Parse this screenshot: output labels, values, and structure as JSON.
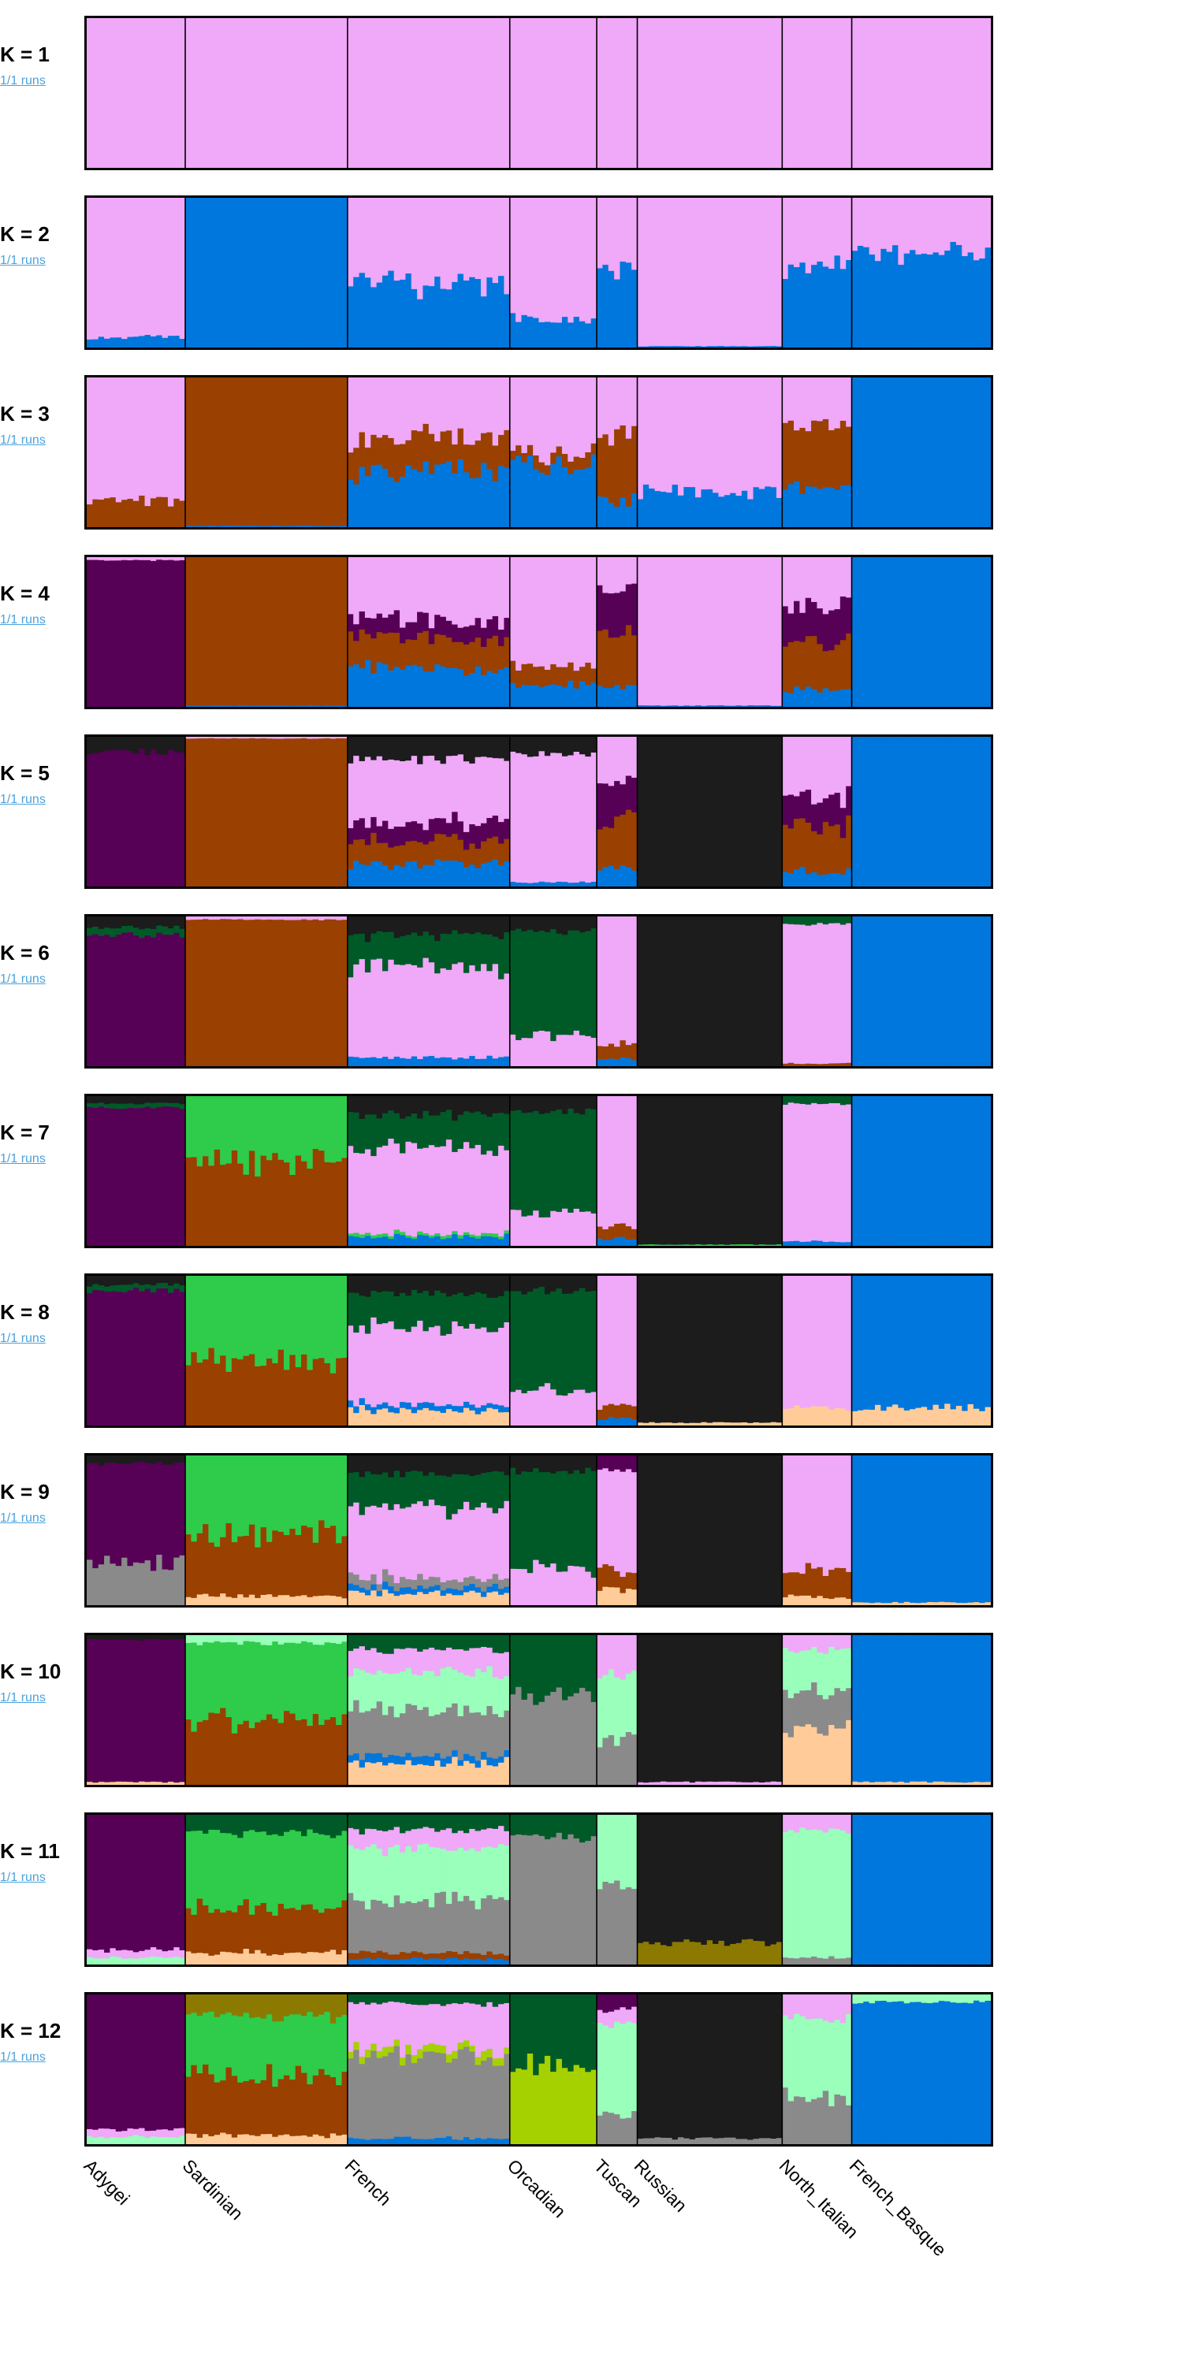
{
  "chart_data": {
    "type": "bar",
    "title": "",
    "xlabel": "",
    "ylabel": "",
    "ylim": [
      0,
      1
    ],
    "runs_text": "1/1 runs",
    "populations": [
      {
        "name": "Adygei",
        "n": 17
      },
      {
        "name": "Sardinian",
        "n": 28
      },
      {
        "name": "French",
        "n": 28
      },
      {
        "name": "Orcadian",
        "n": 15
      },
      {
        "name": "Tuscan",
        "n": 7
      },
      {
        "name": "Russian",
        "n": 25
      },
      {
        "name": "North_Italian",
        "n": 12
      },
      {
        "name": "French_Basque",
        "n": 24
      }
    ],
    "colors": {
      "pink": "#f0a8f8",
      "blue": "#0077dd",
      "brown": "#9a4000",
      "purple": "#560056",
      "black": "#1c1c1c",
      "darkgreen": "#005a28",
      "green": "#2ecc4a",
      "peach": "#ffcc99",
      "gray": "#8a8a8a",
      "mint": "#99ffbb",
      "olive": "#8c7a00",
      "lime": "#a6d100"
    },
    "panels": [
      {
        "label": "K = 1",
        "k": 1,
        "clusters": [
          "pink"
        ],
        "pops": [
          {
            "pink": 1
          },
          {
            "pink": 1
          },
          {
            "pink": 1
          },
          {
            "pink": 1
          },
          {
            "pink": 1
          },
          {
            "pink": 1
          },
          {
            "pink": 1
          },
          {
            "pink": 1
          }
        ]
      },
      {
        "label": "K = 2",
        "k": 2,
        "clusters": [
          "blue",
          "pink"
        ],
        "pops": [
          {
            "blue": 0.07,
            "pink": 0.93
          },
          {
            "blue": 1
          },
          {
            "blue": 0.42,
            "pink": 0.58
          },
          {
            "blue": 0.19,
            "pink": 0.81
          },
          {
            "blue": 0.52,
            "pink": 0.48
          },
          {
            "blue": 0.01,
            "pink": 0.99
          },
          {
            "blue": 0.54,
            "pink": 0.46
          },
          {
            "blue": 0.63,
            "pink": 0.37
          }
        ]
      },
      {
        "label": "K = 3",
        "k": 3,
        "clusters": [
          "blue",
          "brown",
          "pink"
        ],
        "pops": [
          {
            "brown": 0.18,
            "pink": 0.82
          },
          {
            "brown": 0.99,
            "blue": 0.01
          },
          {
            "blue": 0.38,
            "brown": 0.22,
            "pink": 0.4
          },
          {
            "blue": 0.42,
            "brown": 0.08,
            "pink": 0.5
          },
          {
            "blue": 0.18,
            "brown": 0.45,
            "pink": 0.37
          },
          {
            "blue": 0.24,
            "pink": 0.76
          },
          {
            "blue": 0.26,
            "brown": 0.43,
            "pink": 0.31
          },
          {
            "blue": 1
          }
        ]
      },
      {
        "label": "K = 4",
        "k": 4,
        "clusters": [
          "blue",
          "brown",
          "purple",
          "pink"
        ],
        "pops": [
          {
            "purple": 0.98,
            "pink": 0.02
          },
          {
            "brown": 0.99,
            "blue": 0.01
          },
          {
            "blue": 0.25,
            "brown": 0.2,
            "purple": 0.12,
            "pink": 0.43
          },
          {
            "blue": 0.15,
            "brown": 0.12,
            "pink": 0.73
          },
          {
            "blue": 0.15,
            "brown": 0.35,
            "purple": 0.28,
            "pink": 0.22
          },
          {
            "blue": 0.01,
            "pink": 0.99
          },
          {
            "blue": 0.12,
            "brown": 0.3,
            "purple": 0.25,
            "pink": 0.33
          },
          {
            "blue": 1
          }
        ]
      },
      {
        "label": "K = 5",
        "k": 5,
        "clusters": [
          "blue",
          "brown",
          "purple",
          "pink",
          "black"
        ],
        "pops": [
          {
            "purple": 0.9,
            "black": 0.1
          },
          {
            "brown": 0.99,
            "pink": 0.01
          },
          {
            "blue": 0.15,
            "brown": 0.15,
            "purple": 0.12,
            "pink": 0.43,
            "black": 0.15
          },
          {
            "blue": 0.03,
            "pink": 0.85,
            "black": 0.12
          },
          {
            "blue": 0.12,
            "brown": 0.33,
            "purple": 0.25,
            "pink": 0.3
          },
          {
            "black": 1
          },
          {
            "blue": 0.1,
            "brown": 0.3,
            "purple": 0.2,
            "pink": 0.4
          },
          {
            "blue": 1
          }
        ]
      },
      {
        "label": "K = 6",
        "k": 6,
        "clusters": [
          "blue",
          "brown",
          "pink",
          "purple",
          "darkgreen",
          "black"
        ],
        "pops": [
          {
            "purple": 0.88,
            "black": 0.07,
            "darkgreen": 0.05
          },
          {
            "brown": 0.98,
            "pink": 0.02
          },
          {
            "blue": 0.06,
            "pink": 0.6,
            "darkgreen": 0.22,
            "black": 0.12
          },
          {
            "pink": 0.2,
            "darkgreen": 0.7,
            "black": 0.1
          },
          {
            "blue": 0.05,
            "brown": 0.1,
            "pink": 0.85
          },
          {
            "black": 1
          },
          {
            "brown": 0.02,
            "pink": 0.93,
            "darkgreen": 0.05
          },
          {
            "blue": 1
          }
        ]
      },
      {
        "label": "K = 7",
        "k": 7,
        "clusters": [
          "blue",
          "brown",
          "green",
          "pink",
          "purple",
          "darkgreen",
          "black"
        ],
        "pops": [
          {
            "purple": 0.92,
            "black": 0.05,
            "darkgreen": 0.03
          },
          {
            "brown": 0.55,
            "green": 0.45
          },
          {
            "blue": 0.06,
            "green": 0.02,
            "pink": 0.58,
            "darkgreen": 0.22,
            "black": 0.12
          },
          {
            "pink": 0.22,
            "darkgreen": 0.68,
            "black": 0.1
          },
          {
            "blue": 0.05,
            "brown": 0.08,
            "pink": 0.87
          },
          {
            "black": 0.99,
            "green": 0.01
          },
          {
            "blue": 0.03,
            "pink": 0.92,
            "darkgreen": 0.05
          },
          {
            "blue": 1
          }
        ]
      },
      {
        "label": "K = 8",
        "k": 8,
        "clusters": [
          "peach",
          "blue",
          "brown",
          "green",
          "pink",
          "purple",
          "darkgreen",
          "black"
        ],
        "pops": [
          {
            "purple": 0.9,
            "black": 0.06,
            "darkgreen": 0.04
          },
          {
            "brown": 0.45,
            "green": 0.55
          },
          {
            "peach": 0.1,
            "blue": 0.04,
            "pink": 0.52,
            "darkgreen": 0.22,
            "black": 0.12
          },
          {
            "pink": 0.24,
            "darkgreen": 0.66,
            "black": 0.1
          },
          {
            "blue": 0.05,
            "brown": 0.08,
            "pink": 0.87
          },
          {
            "peach": 0.02,
            "black": 0.98
          },
          {
            "peach": 0.12,
            "pink": 0.88
          },
          {
            "peach": 0.12,
            "blue": 0.88
          }
        ]
      },
      {
        "label": "K = 9",
        "k": 9,
        "clusters": [
          "peach",
          "blue",
          "brown",
          "green",
          "gray",
          "pink",
          "purple",
          "darkgreen",
          "black"
        ],
        "pops": [
          {
            "gray": 0.3,
            "purple": 0.65,
            "black": 0.05
          },
          {
            "peach": 0.06,
            "brown": 0.42,
            "green": 0.52
          },
          {
            "peach": 0.08,
            "blue": 0.04,
            "gray": 0.06,
            "pink": 0.48,
            "darkgreen": 0.22,
            "black": 0.12
          },
          {
            "pink": 0.24,
            "darkgreen": 0.66,
            "black": 0.1
          },
          {
            "peach": 0.1,
            "brown": 0.12,
            "purple": 0.1,
            "pink": 0.68
          },
          {
            "black": 1
          },
          {
            "brown": 0.18,
            "peach": 0.06,
            "pink": 0.76
          },
          {
            "blue": 0.98,
            "peach": 0.02
          }
        ]
      },
      {
        "label": "K = 10",
        "k": 10,
        "clusters": [
          "peach",
          "blue",
          "brown",
          "green",
          "gray",
          "mint",
          "pink",
          "purple",
          "darkgreen",
          "black"
        ],
        "pops": [
          {
            "purple": 0.95,
            "black": 0.03,
            "peach": 0.02
          },
          {
            "brown": 0.43,
            "green": 0.52,
            "mint": 0.05
          },
          {
            "peach": 0.15,
            "blue": 0.05,
            "gray": 0.3,
            "mint": 0.25,
            "pink": 0.15,
            "darkgreen": 0.1
          },
          {
            "gray": 0.6,
            "darkgreen": 0.4
          },
          {
            "gray": 0.3,
            "mint": 0.45,
            "pink": 0.25
          },
          {
            "pink": 0.02,
            "black": 0.98
          },
          {
            "peach": 0.35,
            "gray": 0.25,
            "mint": 0.3,
            "pink": 0.1
          },
          {
            "blue": 0.98,
            "peach": 0.02
          }
        ]
      },
      {
        "label": "K = 11",
        "k": 11,
        "clusters": [
          "peach",
          "blue",
          "brown",
          "green",
          "gray",
          "mint",
          "pink",
          "purple",
          "darkgreen",
          "olive",
          "black"
        ],
        "pops": [
          {
            "purple": 0.9,
            "mint": 0.05,
            "pink": 0.05
          },
          {
            "peach": 0.08,
            "brown": 0.3,
            "green": 0.5,
            "darkgreen": 0.12
          },
          {
            "blue": 0.04,
            "brown": 0.04,
            "gray": 0.35,
            "mint": 0.35,
            "pink": 0.12,
            "darkgreen": 0.1
          },
          {
            "gray": 0.85,
            "darkgreen": 0.15
          },
          {
            "gray": 0.55,
            "mint": 0.45
          },
          {
            "olive": 0.15,
            "black": 0.85
          },
          {
            "mint": 0.85,
            "pink": 0.1,
            "gray": 0.05
          },
          {
            "blue": 1
          }
        ]
      },
      {
        "label": "K = 12",
        "k": 12,
        "clusters": [
          "peach",
          "blue",
          "brown",
          "green",
          "gray",
          "mint",
          "lime",
          "pink",
          "purple",
          "darkgreen",
          "olive",
          "black"
        ],
        "pops": [
          {
            "purple": 0.9,
            "mint": 0.05,
            "pink": 0.05
          },
          {
            "peach": 0.06,
            "brown": 0.4,
            "olive": 0.14,
            "green": 0.4
          },
          {
            "blue": 0.04,
            "lime": 0.05,
            "gray": 0.55,
            "pink": 0.3,
            "darkgreen": 0.06
          },
          {
            "lime": 0.55,
            "darkgreen": 0.45
          },
          {
            "mint": 0.6,
            "gray": 0.2,
            "pink": 0.1,
            "purple": 0.1
          },
          {
            "gray": 0.04,
            "black": 0.96
          },
          {
            "mint": 0.55,
            "gray": 0.3,
            "pink": 0.15
          },
          {
            "blue": 0.95,
            "mint": 0.05
          }
        ]
      }
    ]
  }
}
